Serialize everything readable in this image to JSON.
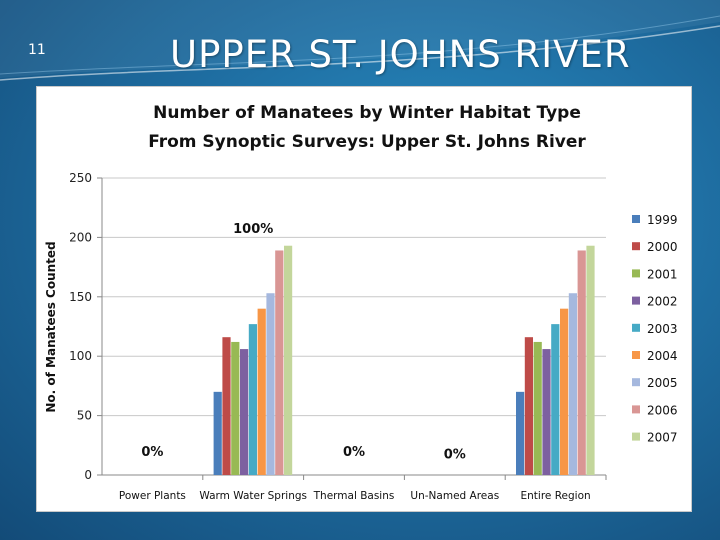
{
  "slide": {
    "number": "11",
    "title": "UPPER ST. JOHNS RIVER"
  },
  "chart_data": {
    "type": "bar",
    "title": "Number of Manatees by Winter Habitat Type",
    "subtitle": "From Synoptic Surveys: Upper St. Johns River",
    "xlabel": "",
    "ylabel": "No. of Manatees Counted",
    "ylim": [
      0,
      250
    ],
    "yticks": [
      0,
      50,
      100,
      150,
      200,
      250
    ],
    "grid": true,
    "legend_position": "right",
    "categories": [
      "Power Plants",
      "Warm Water Springs",
      "Thermal Basins",
      "Un-Named Areas",
      "Entire Region"
    ],
    "series": [
      {
        "name": "1999",
        "color": "#4a7ebb",
        "values": [
          0,
          70,
          0,
          0,
          70
        ]
      },
      {
        "name": "2000",
        "color": "#be4b48",
        "values": [
          0,
          116,
          0,
          0,
          116
        ]
      },
      {
        "name": "2001",
        "color": "#98b954",
        "values": [
          0,
          112,
          0,
          0,
          112
        ]
      },
      {
        "name": "2002",
        "color": "#7d60a0",
        "values": [
          0,
          106,
          0,
          0,
          106
        ]
      },
      {
        "name": "2003",
        "color": "#46aac5",
        "values": [
          0,
          127,
          0,
          0,
          127
        ]
      },
      {
        "name": "2004",
        "color": "#f79646",
        "values": [
          0,
          140,
          0,
          0,
          140
        ]
      },
      {
        "name": "2005",
        "color": "#a5b8de",
        "values": [
          0,
          153,
          0,
          0,
          153
        ]
      },
      {
        "name": "2006",
        "color": "#d99694",
        "values": [
          0,
          189,
          0,
          0,
          189
        ]
      },
      {
        "name": "2007",
        "color": "#c3d69b",
        "values": [
          0,
          193,
          0,
          0,
          193
        ]
      }
    ],
    "annotations": [
      {
        "category": "Power Plants",
        "text": "0%",
        "y": 20
      },
      {
        "category": "Warm Water Springs",
        "text": "100%",
        "y": 208
      },
      {
        "category": "Thermal Basins",
        "text": "0%",
        "y": 20
      },
      {
        "category": "Un-Named Areas",
        "text": "0%",
        "y": 18
      }
    ]
  }
}
